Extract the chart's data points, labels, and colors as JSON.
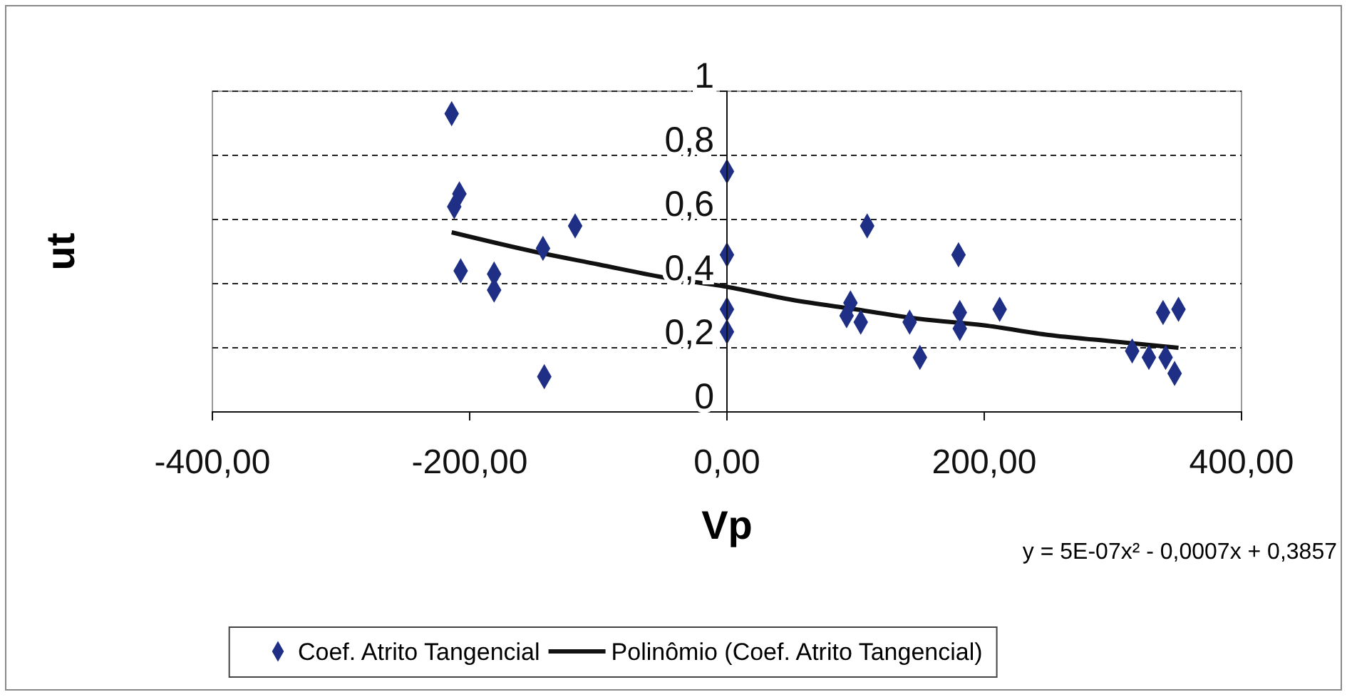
{
  "chart_data": {
    "type": "scatter",
    "xlabel": "Vp",
    "ylabel": "ut",
    "xlim": [
      -400,
      400
    ],
    "xticks": [
      {
        "value": -400,
        "label": "-400,00"
      },
      {
        "value": -200,
        "label": "-200,00"
      },
      {
        "value": 0,
        "label": "0,00"
      },
      {
        "value": 200,
        "label": "200,00"
      },
      {
        "value": 400,
        "label": "400,00"
      }
    ],
    "ylim": [
      0,
      1
    ],
    "yticks": [
      {
        "value": 0,
        "label": "0"
      },
      {
        "value": 0.2,
        "label": "0,2"
      },
      {
        "value": 0.4,
        "label": "0,4"
      },
      {
        "value": 0.6,
        "label": "0,6"
      },
      {
        "value": 0.8,
        "label": "0,8"
      },
      {
        "value": 1,
        "label": "1"
      }
    ],
    "grid": "y",
    "legend": "bottom",
    "series": [
      {
        "name": "Coef. Atrito Tangencial",
        "marker": "diamond",
        "color": "#1f2f86",
        "x": [
          -214,
          -208,
          -212,
          -207,
          -181,
          -181,
          -143,
          -142,
          -118,
          0,
          0,
          0,
          0,
          96,
          93,
          104,
          109,
          142,
          150,
          180,
          181,
          181,
          212,
          315,
          328,
          341,
          339,
          351,
          348
        ],
        "values": [
          0.93,
          0.68,
          0.64,
          0.44,
          0.43,
          0.38,
          0.51,
          0.11,
          0.58,
          0.75,
          0.49,
          0.32,
          0.25,
          0.34,
          0.3,
          0.28,
          0.58,
          0.28,
          0.17,
          0.49,
          0.31,
          0.26,
          0.32,
          0.19,
          0.17,
          0.17,
          0.31,
          0.32,
          0.12
        ]
      },
      {
        "name": "Polinômio (Coef. Atrito Tangencial)",
        "type": "line",
        "color": "#111111",
        "line_style": "solid",
        "marker": "none",
        "x": [
          -214,
          -150,
          -100,
          -50,
          0,
          50,
          100,
          150,
          200,
          250,
          300,
          351
        ],
        "values": [
          0.56,
          0.5,
          0.46,
          0.42,
          0.39,
          0.35,
          0.32,
          0.29,
          0.27,
          0.24,
          0.22,
          0.2
        ]
      }
    ],
    "annotations": [
      "y = 5E-07x² - 0,0007x + 0,3857"
    ]
  }
}
